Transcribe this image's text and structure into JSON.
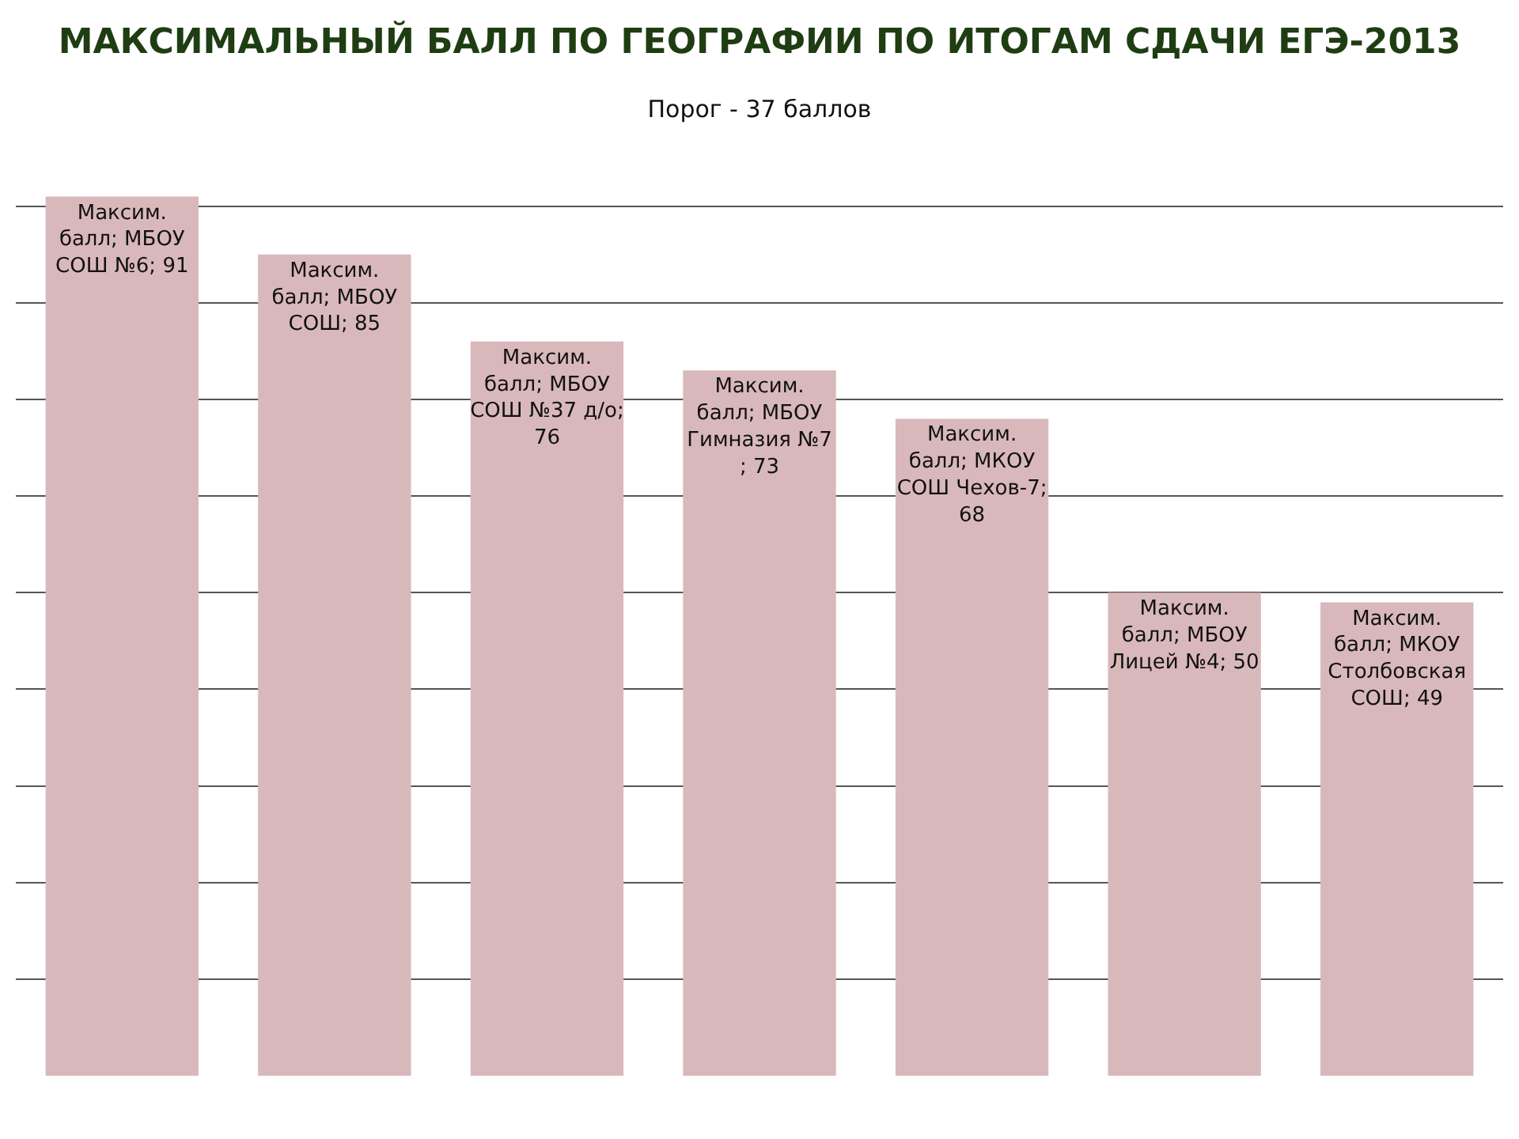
{
  "chart_data": {
    "type": "bar",
    "title": "МАКСИМАЛЬНЫЙ БАЛЛ ПО ГЕОГРАФИИ ПО ИТОГАМ СДАЧИ ЕГЭ-2013",
    "subtitle": "Порог - 37 баллов",
    "categories": [
      null,
      null,
      null,
      null,
      null,
      null,
      null
    ],
    "values": [
      91,
      85,
      76,
      73,
      68,
      50,
      49
    ],
    "value_labels": [
      "Максим. балл; МБОУ СОШ №6; 91",
      "Максим. балл; МБОУ СОШ; 85",
      "Максим. балл; МБОУ СОШ №37 д/о; 76",
      "Максим. балл; МБОУ Гимназия №7 ; 73",
      "Максим. балл; МКОУ СОШ Чехов-7; 68",
      "Максим. балл; МБОУ Лицей №4; 50",
      "Максим. балл; МКОУ Столбовская СОШ; 49"
    ],
    "color": "#d9b8bb",
    "yticks": [
      {
        "value": 10,
        "label": null
      },
      {
        "value": 20,
        "label": null
      },
      {
        "value": 30,
        "label": null
      },
      {
        "value": 40,
        "label": null
      },
      {
        "value": 50,
        "label": null
      },
      {
        "value": 60,
        "label": null
      },
      {
        "value": 70,
        "label": null
      },
      {
        "value": 80,
        "label": null
      },
      {
        "value": 90,
        "label": null
      }
    ],
    "grid": "y"
  }
}
